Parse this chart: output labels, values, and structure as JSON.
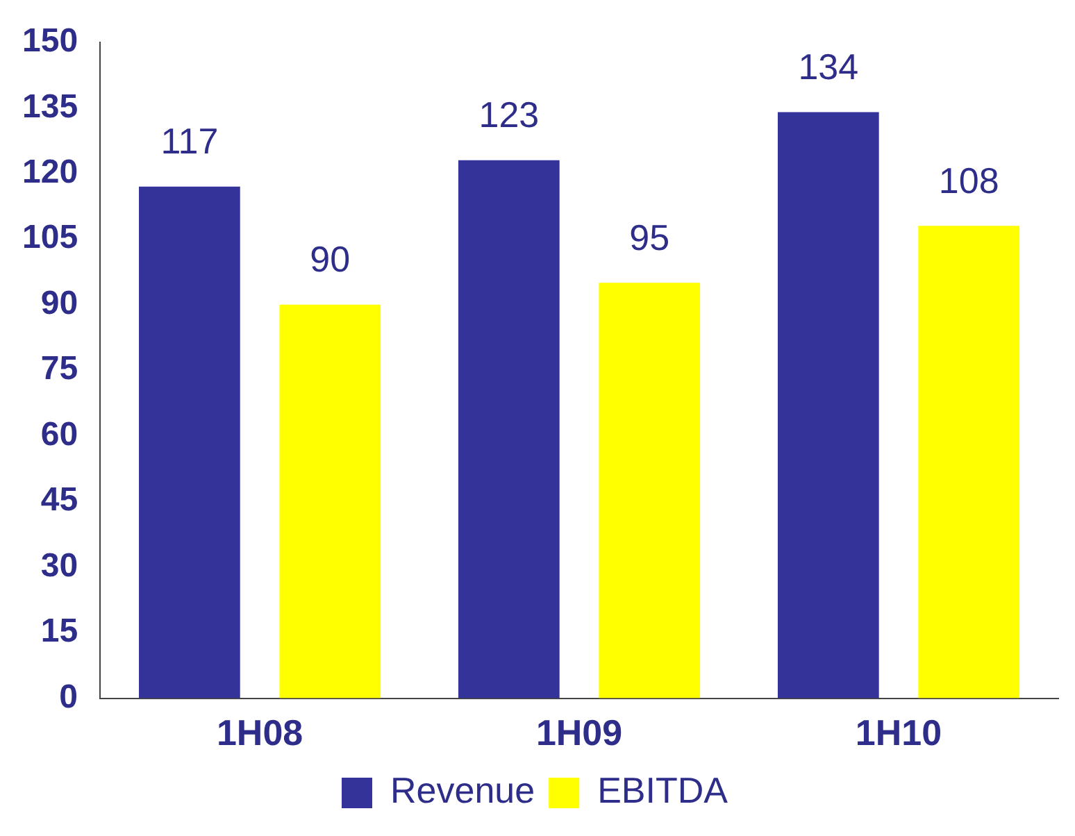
{
  "chart_data": {
    "type": "bar",
    "categories": [
      "1H08",
      "1H09",
      "1H10"
    ],
    "series": [
      {
        "name": "Revenue",
        "color": "#333399",
        "values": [
          117,
          123,
          134
        ]
      },
      {
        "name": "EBITDA",
        "color": "#ffff00",
        "values": [
          90,
          95,
          108
        ]
      }
    ],
    "ylim": [
      0,
      150
    ],
    "yticks": [
      0,
      15,
      30,
      45,
      60,
      75,
      90,
      105,
      120,
      135,
      150
    ],
    "grid": false,
    "legend": "bottom",
    "data_labels": true
  }
}
